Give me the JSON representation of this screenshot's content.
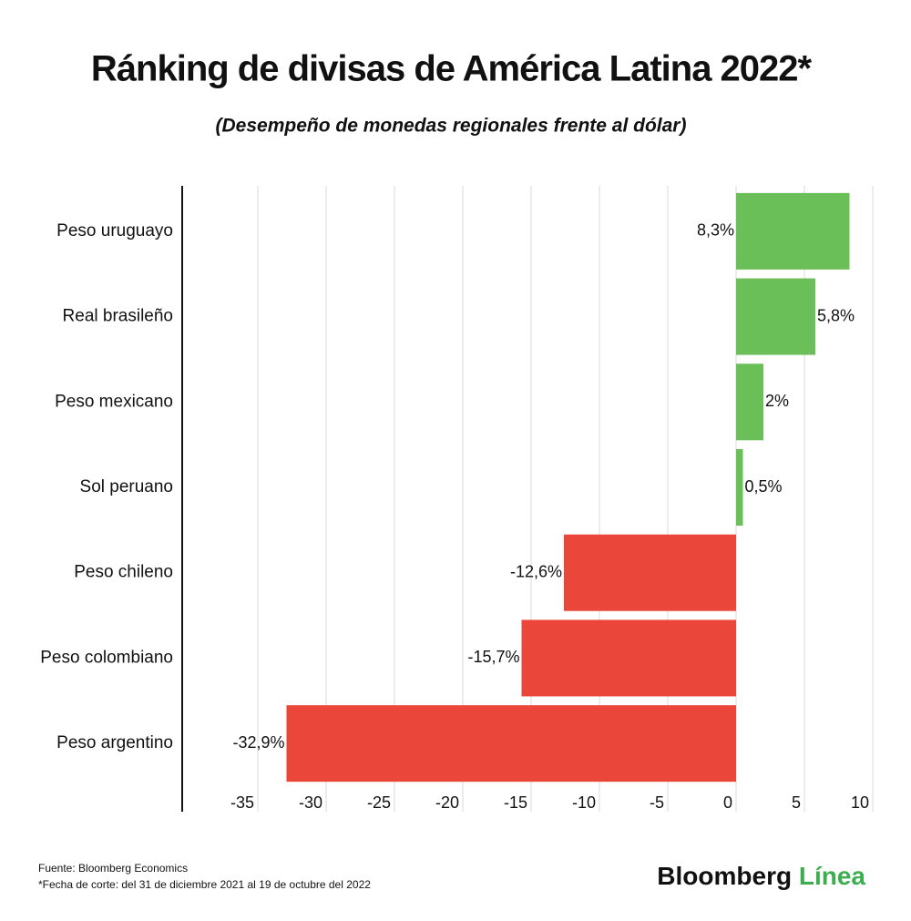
{
  "chart_data": {
    "type": "hbar",
    "title": "Ránking de divisas de América Latina 2022*",
    "subtitle": "(Desempeño de monedas regionales frente al dólar)",
    "categories": [
      "Peso uruguayo",
      "Real brasileño",
      "Peso mexicano",
      "Sol peruano",
      "Peso chileno",
      "Peso colombiano",
      "Peso argentino"
    ],
    "values": [
      8.3,
      5.8,
      2,
      0.5,
      -12.6,
      -15.7,
      -32.9
    ],
    "value_labels": [
      "8,3%",
      "5,8%",
      "2%",
      "0,5%",
      "-12,6%",
      "-15,7%",
      "-32,9%"
    ],
    "colors": [
      "#6abf59",
      "#6abf59",
      "#6abf59",
      "#6abf59",
      "#ea473a",
      "#ea473a",
      "#ea473a"
    ],
    "xlim": [
      -40,
      10
    ],
    "xticks": [
      -35,
      -30,
      -25,
      -20,
      -15,
      -10,
      -5,
      0,
      5,
      10
    ],
    "grid": true,
    "source": "Fuente: Bloomberg Economics",
    "note": "*Fecha de corte: del 31 de diciembre 2021 al 19 de octubre del 2022",
    "brand": [
      "Bloomberg",
      "Línea"
    ]
  }
}
